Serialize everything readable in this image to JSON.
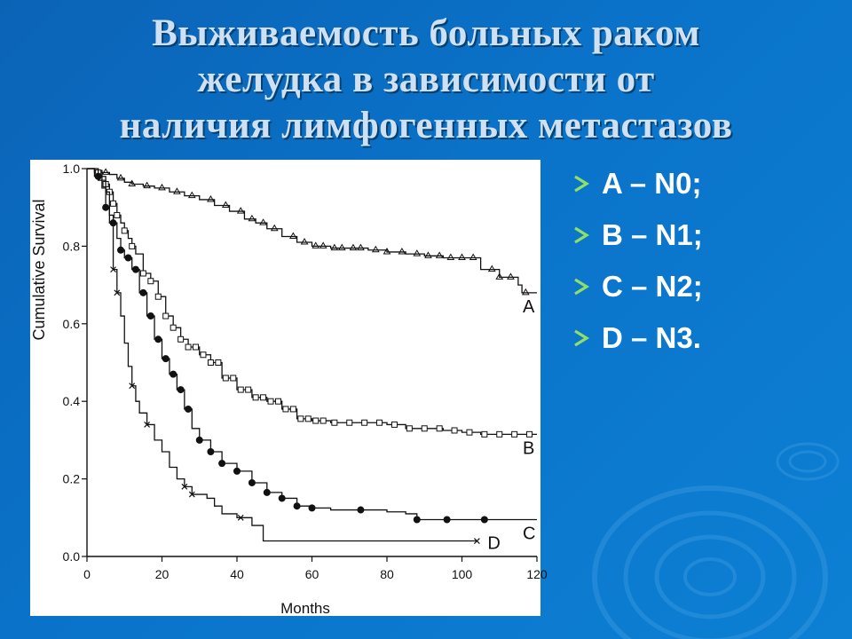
{
  "slide": {
    "title_lines": [
      "Выживаемость больных раком",
      "желудка в зависимости от",
      "наличия лимфогенных метастазов"
    ],
    "bullets": [
      "A – N0;",
      "B – N1;",
      "C – N2;",
      "D – N3."
    ],
    "bullet_icon": "chevron-right-arrow-icon",
    "colors": {
      "background": "#0a6fc4",
      "title": "#cfe0f3",
      "bullet_text": "#ffffff",
      "bullet_arrow": "#7ed957"
    }
  },
  "chart_data": {
    "type": "line",
    "xlabel": "Months",
    "ylabel": "Cumulative Survival",
    "xlim": [
      0,
      120
    ],
    "ylim": [
      0,
      1
    ],
    "x_ticks": [
      0,
      20,
      40,
      60,
      80,
      100,
      120
    ],
    "y_ticks": [
      0.0,
      0.2,
      0.4,
      0.6,
      0.8,
      1.0
    ],
    "x_tick_labels": [
      "0",
      "20",
      "40",
      "60",
      "80",
      "100",
      "120"
    ],
    "y_tick_labels": [
      "0.0",
      "0.2",
      "0.4",
      "0.6",
      "0.8",
      "1.0"
    ],
    "grid": false,
    "series": [
      {
        "name": "A",
        "marker": "triangle",
        "points": [
          [
            0,
            1.0
          ],
          [
            2,
            0.995
          ],
          [
            4,
            0.99
          ],
          [
            6,
            0.985
          ],
          [
            8,
            0.975
          ],
          [
            10,
            0.965
          ],
          [
            12,
            0.96
          ],
          [
            15,
            0.955
          ],
          [
            18,
            0.95
          ],
          [
            22,
            0.94
          ],
          [
            26,
            0.93
          ],
          [
            30,
            0.92
          ],
          [
            34,
            0.905
          ],
          [
            38,
            0.89
          ],
          [
            42,
            0.87
          ],
          [
            45,
            0.86
          ],
          [
            48,
            0.845
          ],
          [
            52,
            0.825
          ],
          [
            56,
            0.81
          ],
          [
            60,
            0.8
          ],
          [
            65,
            0.795
          ],
          [
            70,
            0.795
          ],
          [
            75,
            0.79
          ],
          [
            80,
            0.785
          ],
          [
            85,
            0.78
          ],
          [
            90,
            0.775
          ],
          [
            95,
            0.77
          ],
          [
            100,
            0.77
          ],
          [
            104,
            0.77
          ],
          [
            105,
            0.74
          ],
          [
            110,
            0.72
          ],
          [
            115,
            0.7
          ],
          [
            116,
            0.68
          ],
          [
            120,
            0.68
          ]
        ],
        "markers_x": [
          5,
          9,
          12,
          16,
          20,
          24,
          28,
          33,
          37,
          41,
          44,
          47,
          50,
          55,
          58,
          61,
          63,
          66,
          68,
          71,
          73,
          77,
          80,
          84,
          88,
          91,
          94,
          97,
          100,
          103,
          108,
          110,
          113,
          117
        ]
      },
      {
        "name": "B",
        "marker": "square",
        "points": [
          [
            0,
            1.0
          ],
          [
            2,
            0.99
          ],
          [
            4,
            0.98
          ],
          [
            5,
            0.96
          ],
          [
            6,
            0.94
          ],
          [
            7,
            0.91
          ],
          [
            8,
            0.88
          ],
          [
            9,
            0.86
          ],
          [
            10,
            0.84
          ],
          [
            11,
            0.82
          ],
          [
            12,
            0.8
          ],
          [
            13,
            0.78
          ],
          [
            15,
            0.73
          ],
          [
            17,
            0.71
          ],
          [
            19,
            0.67
          ],
          [
            21,
            0.62
          ],
          [
            23,
            0.59
          ],
          [
            25,
            0.56
          ],
          [
            27,
            0.54
          ],
          [
            30,
            0.52
          ],
          [
            33,
            0.5
          ],
          [
            36,
            0.46
          ],
          [
            40,
            0.43
          ],
          [
            44,
            0.41
          ],
          [
            48,
            0.4
          ],
          [
            52,
            0.38
          ],
          [
            56,
            0.355
          ],
          [
            60,
            0.35
          ],
          [
            65,
            0.345
          ],
          [
            70,
            0.345
          ],
          [
            75,
            0.345
          ],
          [
            80,
            0.34
          ],
          [
            85,
            0.33
          ],
          [
            90,
            0.33
          ],
          [
            95,
            0.325
          ],
          [
            100,
            0.32
          ],
          [
            105,
            0.315
          ],
          [
            110,
            0.315
          ],
          [
            120,
            0.315
          ]
        ],
        "markers_x": [
          3,
          5,
          6,
          7,
          8,
          10,
          12,
          15,
          17,
          19,
          21,
          23,
          25,
          27,
          29,
          31,
          33,
          35,
          37,
          39,
          41,
          43,
          45,
          47,
          49,
          51,
          53,
          55,
          57,
          59,
          61,
          63,
          66,
          70,
          74,
          78,
          82,
          86,
          90,
          94,
          98,
          102,
          106,
          110,
          114,
          118
        ]
      },
      {
        "name": "C",
        "marker": "circle",
        "points": [
          [
            0,
            1.0
          ],
          [
            2,
            0.98
          ],
          [
            4,
            0.95
          ],
          [
            5,
            0.9
          ],
          [
            6,
            0.88
          ],
          [
            7,
            0.86
          ],
          [
            8,
            0.82
          ],
          [
            9,
            0.79
          ],
          [
            10,
            0.77
          ],
          [
            12,
            0.74
          ],
          [
            14,
            0.68
          ],
          [
            16,
            0.62
          ],
          [
            18,
            0.56
          ],
          [
            20,
            0.51
          ],
          [
            22,
            0.47
          ],
          [
            24,
            0.43
          ],
          [
            26,
            0.38
          ],
          [
            28,
            0.33
          ],
          [
            30,
            0.3
          ],
          [
            33,
            0.27
          ],
          [
            36,
            0.24
          ],
          [
            40,
            0.22
          ],
          [
            44,
            0.19
          ],
          [
            48,
            0.165
          ],
          [
            52,
            0.15
          ],
          [
            56,
            0.13
          ],
          [
            60,
            0.125
          ],
          [
            65,
            0.12
          ],
          [
            70,
            0.12
          ],
          [
            75,
            0.12
          ],
          [
            80,
            0.115
          ],
          [
            85,
            0.11
          ],
          [
            88,
            0.095
          ],
          [
            95,
            0.095
          ],
          [
            100,
            0.095
          ],
          [
            105,
            0.095
          ],
          [
            110,
            0.095
          ],
          [
            120,
            0.095
          ]
        ],
        "markers_x": [
          3,
          5,
          7,
          9,
          11,
          13,
          15,
          17,
          19,
          21,
          23,
          25,
          27,
          30,
          33,
          36,
          40,
          44,
          48,
          52,
          56,
          60,
          73,
          88,
          96,
          106
        ]
      },
      {
        "name": "D",
        "marker": "cross",
        "points": [
          [
            0,
            1.0
          ],
          [
            3,
            0.97
          ],
          [
            5,
            0.94
          ],
          [
            6,
            0.86
          ],
          [
            7,
            0.74
          ],
          [
            8,
            0.68
          ],
          [
            9,
            0.62
          ],
          [
            10,
            0.55
          ],
          [
            11,
            0.49
          ],
          [
            12,
            0.44
          ],
          [
            13,
            0.4
          ],
          [
            14,
            0.37
          ],
          [
            16,
            0.34
          ],
          [
            18,
            0.3
          ],
          [
            20,
            0.27
          ],
          [
            22,
            0.23
          ],
          [
            24,
            0.2
          ],
          [
            26,
            0.18
          ],
          [
            28,
            0.16
          ],
          [
            32,
            0.15
          ],
          [
            34,
            0.13
          ],
          [
            36,
            0.11
          ],
          [
            40,
            0.1
          ],
          [
            44,
            0.08
          ],
          [
            47,
            0.04
          ],
          [
            60,
            0.04
          ],
          [
            80,
            0.04
          ],
          [
            95,
            0.04
          ],
          [
            104,
            0.04
          ]
        ],
        "markers_x": [
          7,
          8,
          12,
          16,
          26,
          28,
          41,
          104
        ]
      }
    ]
  }
}
